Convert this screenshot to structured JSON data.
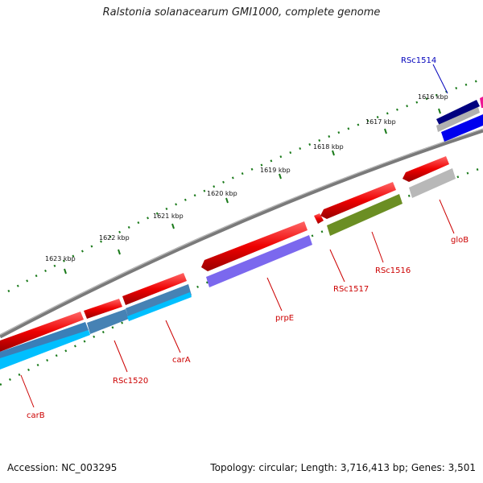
{
  "title": "Ralstonia solanacearum GMI1000, complete genome",
  "footer": {
    "accession": "Accession: NC_003295",
    "summary": "Topology: circular; Length: 3,716,413 bp; Genes: 3,501"
  },
  "ruler_labels": [
    "1616 kbp",
    "1617 kbp",
    "1618 kbp",
    "1619 kbp",
    "1620 kbp",
    "1621 kbp",
    "1622 kbp",
    "1623 kbp"
  ],
  "gene_labels": [
    {
      "text": "RSc1514",
      "color": "#0000bb"
    },
    {
      "text": "gloB",
      "color": "#cc0000"
    },
    {
      "text": "RSc1516",
      "color": "#cc0000"
    },
    {
      "text": "RSc1517",
      "color": "#cc0000"
    },
    {
      "text": "prpE",
      "color": "#cc0000"
    },
    {
      "text": "carA",
      "color": "#cc0000"
    },
    {
      "text": "RSc1520",
      "color": "#cc0000"
    },
    {
      "text": "carB",
      "color": "#cc0000"
    }
  ],
  "colors": {
    "backbone": "#808080",
    "cds": "#ee0000",
    "ticks": "#1a7a1a",
    "rsc1514_dark": "#000080",
    "rsc1514_blue": "#0000ee",
    "globB_gray": "#b8b8b8",
    "rsc1516_olive": "#6b8e23",
    "prpE_purple": "#7b68ee",
    "carA_steel": "#4682b4",
    "carB_cyan": "#00bfff",
    "magenta": "#ee1493"
  }
}
